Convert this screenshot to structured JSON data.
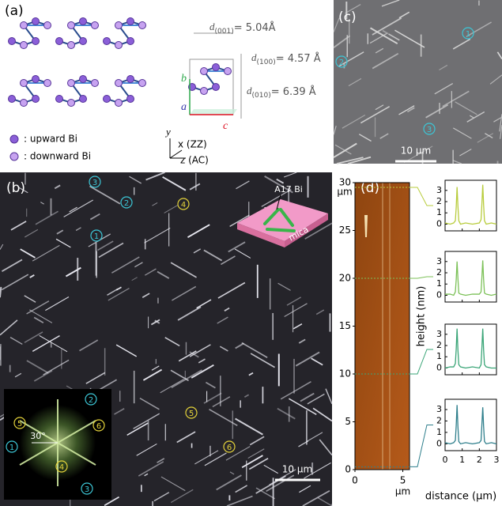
{
  "panel_a": {
    "label": "(a)",
    "legend": [
      {
        "text": ": upward Bi",
        "color": "#8b5fd8"
      },
      {
        "text": ": downward Bi",
        "color": "#c7a3f0"
      }
    ],
    "d_spacings": [
      {
        "symbol": "d",
        "index": "(001)",
        "text": "= 5.04Å"
      },
      {
        "symbol": "d",
        "index": "(100)",
        "text": "= 4.57 Å"
      },
      {
        "symbol": "d",
        "index": "(010)",
        "text": "= 6.39 Å"
      }
    ],
    "vectors": [
      "b",
      "a",
      "c"
    ],
    "axes": [
      "y",
      "x (ZZ)",
      "z (AC)"
    ]
  },
  "panel_b": {
    "label": "(b)",
    "markers": [
      {
        "text": "3",
        "color": "#3cc6d6"
      },
      {
        "text": "2",
        "color": "#3cc6d6"
      },
      {
        "text": "1",
        "color": "#3cc6d6"
      },
      {
        "text": "4",
        "color": "#e3d23a"
      },
      {
        "text": "5",
        "color": "#e3d23a"
      },
      {
        "text": "6",
        "color": "#e3d23a"
      }
    ],
    "schematic": {
      "flake": "A17 Bi",
      "substrate": "mica"
    },
    "scale_bar": "10 μm",
    "inset": {
      "angle": "30°",
      "markers": [
        {
          "text": "2",
          "color": "#3cc6d6"
        },
        {
          "text": "1",
          "color": "#3cc6d6"
        },
        {
          "text": "3",
          "color": "#3cc6d6"
        },
        {
          "text": "5",
          "color": "#e3d23a"
        },
        {
          "text": "6",
          "color": "#e3d23a"
        },
        {
          "text": "4",
          "color": "#e3d23a"
        }
      ]
    }
  },
  "panel_c": {
    "label": "(c)",
    "markers": [
      {
        "text": "1",
        "color": "#3cc6d6"
      },
      {
        "text": "2",
        "color": "#3cc6d6"
      },
      {
        "text": "3",
        "color": "#3cc6d6"
      }
    ],
    "scale_bar": "10 μm"
  },
  "panel_d": {
    "label": "(d)",
    "map": {
      "xlim": [
        0,
        5.7
      ],
      "ylim": [
        0,
        30
      ],
      "xticks": [
        0,
        5
      ],
      "yticks": [
        0,
        5,
        10,
        15,
        20,
        25,
        30
      ],
      "x_unit": "μm",
      "y_unit": "μm",
      "cut_positions": [
        29.5,
        20,
        10,
        0.3
      ]
    },
    "profiles": {
      "type": "line",
      "y_label": "height (nm)",
      "x_label": "distance (μm)",
      "xlim": [
        0,
        3
      ],
      "ylim": [
        -0.6,
        3.9
      ],
      "xticks": [
        0,
        1,
        2,
        3
      ],
      "yticks": [
        0,
        1,
        2,
        3
      ],
      "x": [
        0,
        0.3,
        0.5,
        0.6,
        0.65,
        0.7,
        0.75,
        0.8,
        0.9,
        1.2,
        1.6,
        2.0,
        2.1,
        2.15,
        2.2,
        2.25,
        2.3,
        2.4,
        2.7,
        3
      ],
      "series": [
        {
          "color": "#b8cc3c",
          "values": [
            0.1,
            0,
            0.1,
            0.3,
            1.5,
            3.3,
            1.6,
            0.3,
            0,
            0.1,
            0,
            0.1,
            0.4,
            1.8,
            3.5,
            1.7,
            0.3,
            0,
            0.1,
            0
          ]
        },
        {
          "color": "#7cc158",
          "values": [
            0.1,
            0.1,
            0,
            0.3,
            1.4,
            3.0,
            1.5,
            0.2,
            0.1,
            0,
            0.1,
            0.1,
            0.3,
            1.6,
            3.1,
            1.4,
            0.2,
            0.1,
            0,
            0.1
          ]
        },
        {
          "color": "#3aa577",
          "values": [
            0,
            0.1,
            0.1,
            0.4,
            1.7,
            3.5,
            1.6,
            0.3,
            0.1,
            0,
            0.1,
            0,
            0.3,
            1.8,
            3.5,
            1.6,
            0.3,
            0.1,
            0,
            0
          ]
        },
        {
          "color": "#2f7f8c",
          "values": [
            0.1,
            0,
            0.1,
            0.3,
            1.6,
            3.4,
            1.5,
            0.2,
            0,
            0.1,
            0,
            0.1,
            0.3,
            1.7,
            3.2,
            1.5,
            0.2,
            0,
            0.1,
            0
          ]
        }
      ]
    }
  }
}
